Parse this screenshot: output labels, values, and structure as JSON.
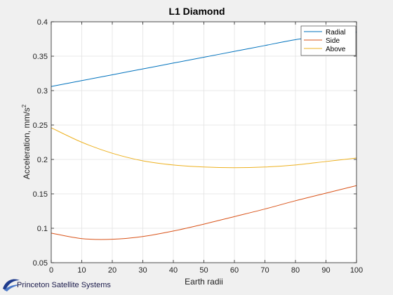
{
  "chart_data": {
    "type": "line",
    "title": "L1 Diamond",
    "xlabel": "Earth radii",
    "ylabel": "Acceleration, mm/s",
    "ylabel_superscript": "2",
    "xlim": [
      0,
      100
    ],
    "ylim": [
      0.05,
      0.4
    ],
    "xticks": [
      "0",
      "10",
      "20",
      "30",
      "40",
      "50",
      "60",
      "70",
      "80",
      "90",
      "100"
    ],
    "yticks": [
      "0.05",
      "0.1",
      "0.15",
      "0.2",
      "0.25",
      "0.3",
      "0.35",
      "0.4"
    ],
    "grid": true,
    "legend_position": "top-right",
    "x": [
      0,
      10,
      20,
      30,
      40,
      50,
      60,
      70,
      80,
      90,
      100
    ],
    "series": [
      {
        "name": "Radial",
        "color": "#0072BD",
        "values": [
          0.306,
          0.3145,
          0.323,
          0.3315,
          0.34,
          0.3485,
          0.357,
          0.3655,
          0.374,
          0.3795,
          0.385
        ]
      },
      {
        "name": "Side",
        "color": "#D95319",
        "values": [
          0.093,
          0.085,
          0.084,
          0.088,
          0.096,
          0.106,
          0.117,
          0.128,
          0.14,
          0.151,
          0.162
        ]
      },
      {
        "name": "Above",
        "color": "#EDB120",
        "values": [
          0.246,
          0.225,
          0.209,
          0.198,
          0.192,
          0.189,
          0.188,
          0.189,
          0.192,
          0.197,
          0.202
        ]
      }
    ]
  },
  "logo": {
    "text": "Princeton Satellite Systems"
  }
}
